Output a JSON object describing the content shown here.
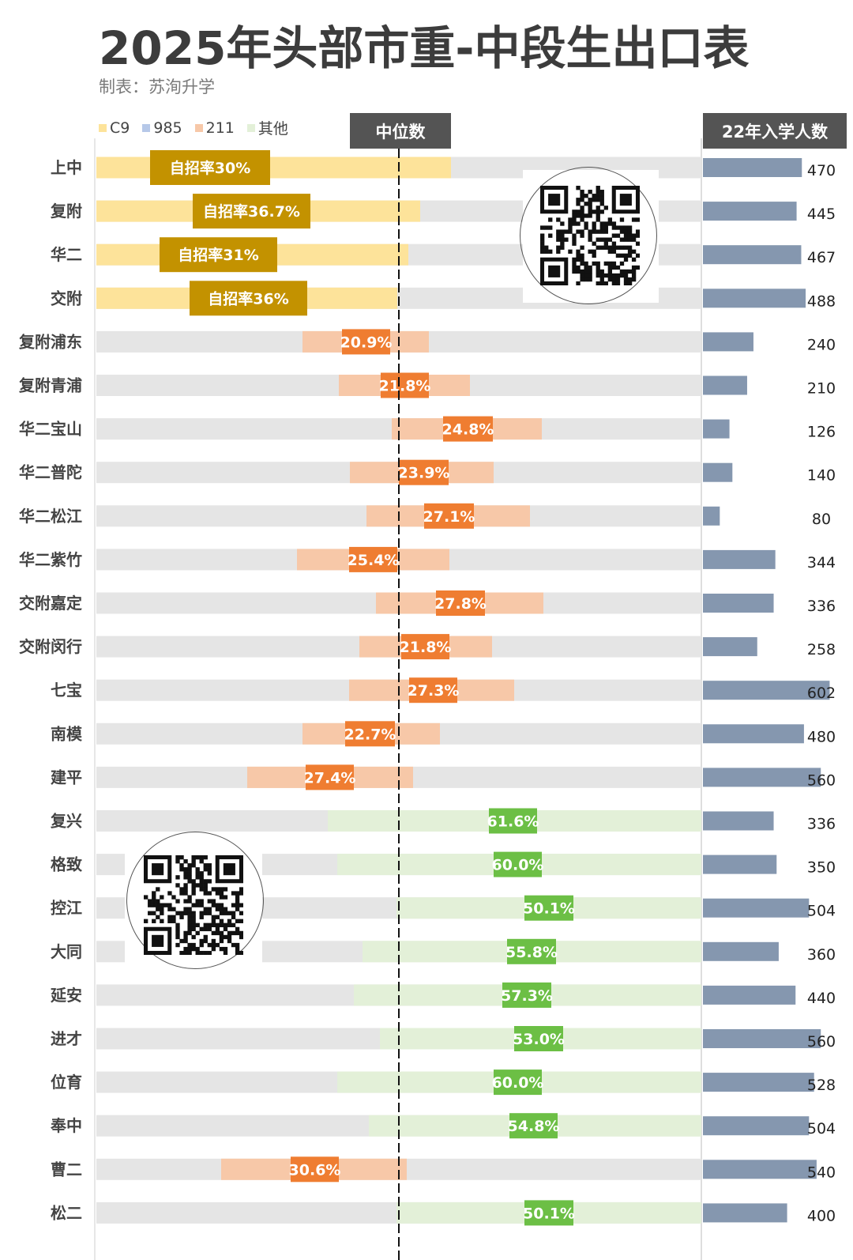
{
  "header": {
    "title": "2025年头部市重-中段生出口表",
    "maker": "制表：苏洵升学",
    "median_header": "中位数",
    "enroll_header": "22年入学人数"
  },
  "legend": [
    {
      "label": "C9",
      "color": "#fde39a"
    },
    {
      "label": "985",
      "color": "#b6c8e8"
    },
    {
      "label": "211",
      "color": "#f7c8a8"
    },
    {
      "label": "其他",
      "color": "#e3f0d8"
    }
  ],
  "colors": {
    "c9_bar": "#fde39a",
    "c9_label": "#c39200",
    "r211_bar": "#f7c8a8",
    "r211_label": "#ef7d31",
    "other_bar": "#e3f0d8",
    "other_label": "#6cbf45",
    "track": "#e5e5e5",
    "enroll_bar": "#8597af"
  },
  "chart_data": {
    "type": "bar",
    "categories": [
      "上中",
      "复附",
      "华二",
      "交附",
      "复附浦东",
      "复附青浦",
      "华二宝山",
      "华二普陀",
      "华二松江",
      "华二紫竹",
      "交附嘉定",
      "交附闵行",
      "七宝",
      "南模",
      "建平",
      "复兴",
      "格致",
      "控江",
      "大同",
      "延安",
      "进才",
      "位育",
      "奉中",
      "曹二",
      "松二"
    ],
    "series": [
      {
        "group": "C9",
        "labels": [
          "自招率30%",
          "自招率36.7%",
          "自招率31%",
          "自招率36%",
          "",
          "",
          "",
          "",
          "",
          "",
          "",
          "",
          "",
          "",
          "",
          "",
          "",
          "",
          "",
          "",
          "",
          "",
          "",
          "",
          ""
        ]
      },
      {
        "group": "211",
        "labels": [
          "",
          "",
          "",
          "",
          "20.9%",
          "21.8%",
          "24.8%",
          "23.9%",
          "27.1%",
          "25.4%",
          "27.8%",
          "21.8%",
          "27.3%",
          "22.7%",
          "27.4%",
          "",
          "",
          "",
          "",
          "",
          "",
          "",
          "",
          "30.6%",
          ""
        ]
      },
      {
        "group": "其他",
        "labels": [
          "",
          "",
          "",
          "",
          "",
          "",
          "",
          "",
          "",
          "",
          "",
          "",
          "",
          "",
          "",
          "61.6%",
          "60.0%",
          "50.1%",
          "55.8%",
          "57.3%",
          "53.0%",
          "60.0%",
          "54.8%",
          "",
          "50.1%"
        ]
      }
    ],
    "enrollment_2022": [
      470,
      445,
      467,
      488,
      240,
      210,
      126,
      140,
      80,
      344,
      336,
      258,
      602,
      480,
      560,
      336,
      350,
      504,
      360,
      440,
      560,
      528,
      504,
      540,
      400
    ],
    "enrollment_labels": [
      "470",
      "445",
      "467",
      "488",
      "240",
      "210",
      "126",
      "140",
      "80",
      "344",
      "336",
      "258",
      "602",
      "480",
      "560",
      "336",
      "350",
      "504",
      "360",
      "440",
      "560",
      "528",
      "504",
      "540",
      "400"
    ],
    "grid": false,
    "legend_position": "top-left"
  }
}
